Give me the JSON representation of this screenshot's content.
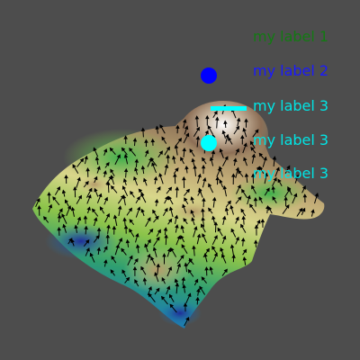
{
  "legend": {
    "items": [
      {
        "label": "my label 1",
        "marker": "none",
        "color": "#127a12"
      },
      {
        "label": "my label 2",
        "marker": "circle",
        "color": "#0000ff"
      },
      {
        "label": "my label 3",
        "marker": "line",
        "color": "#00ffff"
      },
      {
        "label": "my label 3",
        "marker": "circle",
        "color": "#00ffff"
      },
      {
        "label": "my label 3",
        "marker": "none",
        "color": "#00ffff"
      }
    ]
  },
  "scene": {
    "background": "#4d4d4d",
    "surface_colormap": [
      "#2d2fa0",
      "#1f8a8a",
      "#7fbf3f",
      "#d9d98a",
      "#a89060",
      "#ffffff"
    ],
    "glyphs": "black arrows"
  }
}
